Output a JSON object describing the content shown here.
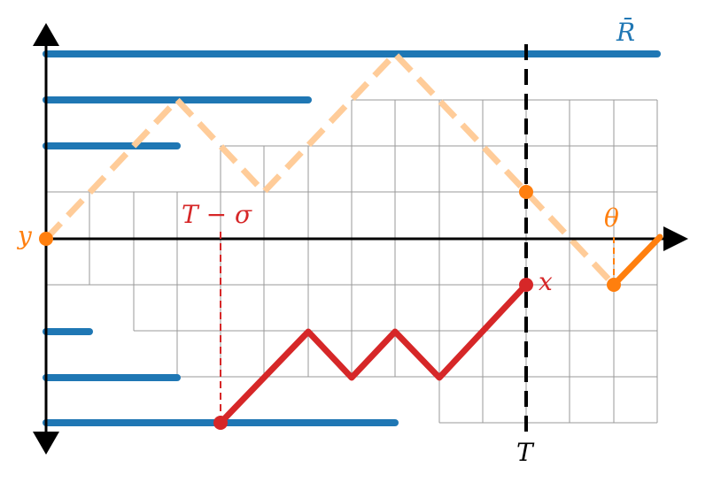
{
  "colors": {
    "grid": "#9a9a9a",
    "axis": "#000000",
    "blue": "#1f77b4",
    "orange": "#ff7f0e",
    "orange_light": "#ffcc99",
    "red": "#d62728"
  },
  "labels": {
    "r_bar": "R̄",
    "y": "y",
    "t_minus_sigma": "T − σ",
    "x": "x",
    "theta": "θ",
    "T": "T"
  }
}
